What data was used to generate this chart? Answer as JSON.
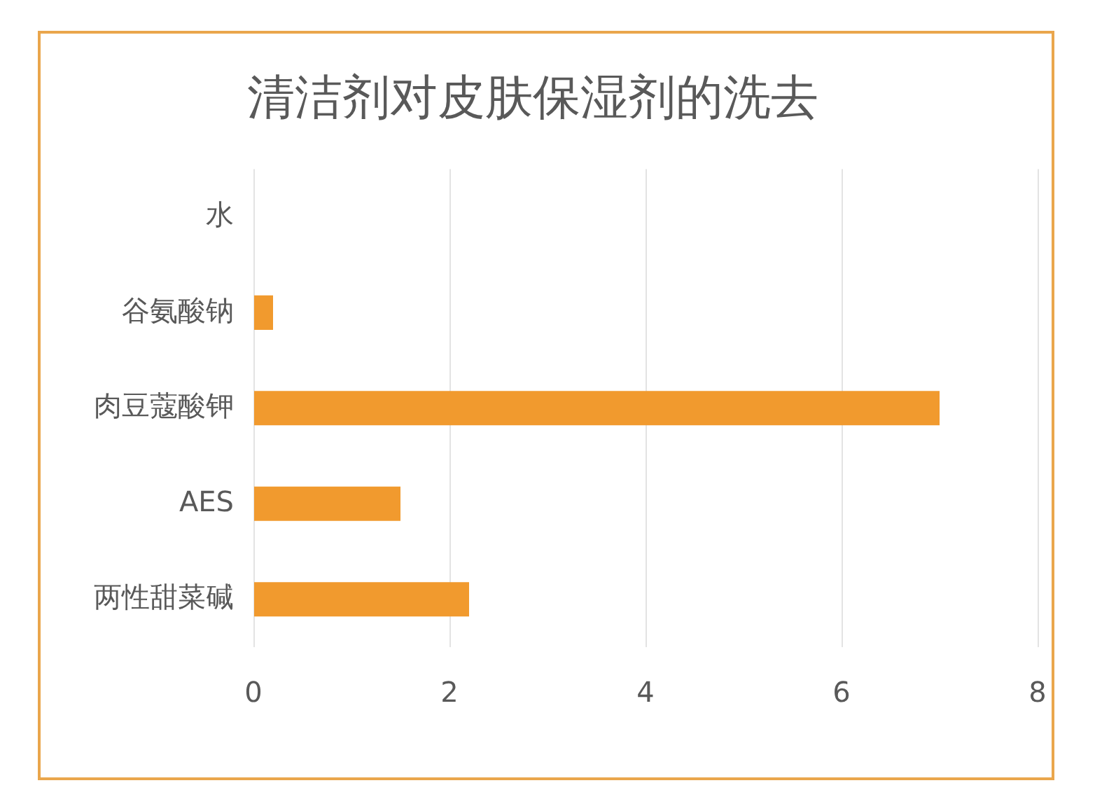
{
  "chart_data": {
    "type": "bar",
    "title": "清洁剂对皮肤保湿剂的洗去",
    "orientation": "horizontal",
    "categories": [
      "水",
      "谷氨酸钠",
      "肉豆蔻酸钾",
      "AES",
      "两性甜菜碱"
    ],
    "values": [
      0,
      0.2,
      7,
      1.5,
      2.2
    ],
    "color": "#f19a2e",
    "xlim": [
      0,
      8
    ],
    "xticks": [
      0,
      2,
      4,
      6,
      8
    ],
    "grid": "x"
  }
}
